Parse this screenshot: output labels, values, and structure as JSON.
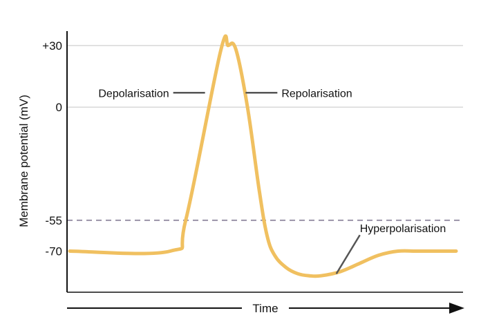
{
  "chart_data": {
    "type": "line",
    "title": "",
    "ylabel": "Membrane potential (mV)",
    "xlabel": "Time",
    "ylim": [
      -90,
      37
    ],
    "xlim": [
      0,
      100
    ],
    "yticks": [
      {
        "value": 30,
        "label": "+30"
      },
      {
        "value": 0,
        "label": "0"
      },
      {
        "value": -55,
        "label": "-55"
      },
      {
        "value": -70,
        "label": "-70"
      }
    ],
    "grid_lines": [
      30,
      0
    ],
    "threshold": {
      "value": -55,
      "style": "dashed"
    },
    "series": [
      {
        "color": "#f0c060",
        "x": [
          0,
          26,
          30,
          39,
          41,
          43,
          46,
          49,
          51,
          53,
          56,
          59,
          62,
          65,
          70,
          75,
          80,
          85,
          90,
          100
        ],
        "y": [
          -70,
          -70,
          -55,
          27,
          30,
          28,
          0,
          -40,
          -62,
          -72,
          -78,
          -81,
          -82,
          -82,
          -80,
          -76,
          -72,
          -70,
          -70,
          -70
        ]
      }
    ],
    "annotations": [
      {
        "text": "Depolarisation",
        "target_x": 35,
        "target_y": 7,
        "side": "left"
      },
      {
        "text": "Repolarisation",
        "target_x": 45.5,
        "target_y": 7,
        "side": "right"
      },
      {
        "text": "Hyperpolarisation",
        "target_x": 69,
        "target_y": -81,
        "side": "right"
      }
    ],
    "colors": {
      "line": "#f0c060",
      "grid": "#d8d8d8",
      "threshold": "#9a93a8",
      "axis": "#111111",
      "leader": "#555555"
    }
  }
}
